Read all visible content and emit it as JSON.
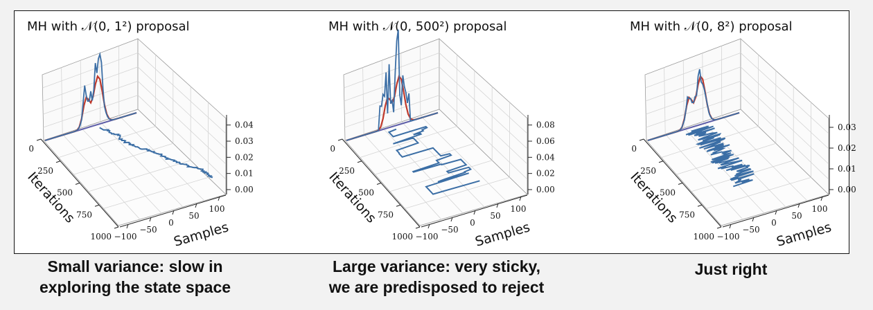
{
  "chart_data": [
    {
      "type": "line-3d",
      "title": "MH with 𝒩(0, 1²) proposal",
      "xlabel": "Samples",
      "ylabel": "Iterations",
      "x_ticks": [
        "−100",
        "−50",
        "0",
        "50",
        "100"
      ],
      "y_ticks": [
        "0",
        "250",
        "500",
        "750",
        "1000"
      ],
      "z_ticks": [
        "0.00",
        "0.01",
        "0.02",
        "0.03",
        "0.04"
      ],
      "zlim": [
        0,
        0.045
      ],
      "series": [
        {
          "role": "target density",
          "color": "#c0392b"
        },
        {
          "role": "sample histogram",
          "color": "#3b6ea5"
        },
        {
          "role": "trace",
          "color": "#3b6ea5"
        }
      ],
      "caption": [
        "Small variance: slow in",
        "exploring the state space"
      ]
    },
    {
      "type": "line-3d",
      "title": "MH with 𝒩(0, 500²) proposal",
      "xlabel": "Samples",
      "ylabel": "Iterations",
      "x_ticks": [
        "−100",
        "−50",
        "0",
        "50",
        "100"
      ],
      "y_ticks": [
        "0",
        "250",
        "500",
        "750",
        "1000"
      ],
      "z_ticks": [
        "0.00",
        "0.02",
        "0.04",
        "0.06",
        "0.08"
      ],
      "zlim": [
        0,
        0.09
      ],
      "series": [
        {
          "role": "target density",
          "color": "#c0392b"
        },
        {
          "role": "sample histogram",
          "color": "#3b6ea5"
        },
        {
          "role": "trace",
          "color": "#3b6ea5"
        }
      ],
      "caption": [
        "Large variance: very sticky,",
        "we are predisposed to reject"
      ]
    },
    {
      "type": "line-3d",
      "title": "MH with 𝒩(0, 8²) proposal",
      "xlabel": "Samples",
      "ylabel": "Iterations",
      "x_ticks": [
        "−100",
        "−50",
        "0",
        "50",
        "100"
      ],
      "y_ticks": [
        "0",
        "250",
        "500",
        "750",
        "1000"
      ],
      "z_ticks": [
        "0.00",
        "0.01",
        "0.02",
        "0.03"
      ],
      "zlim": [
        0,
        0.035
      ],
      "series": [
        {
          "role": "target density",
          "color": "#c0392b"
        },
        {
          "role": "sample histogram",
          "color": "#3b6ea5"
        },
        {
          "role": "trace",
          "color": "#3b6ea5"
        }
      ],
      "caption": [
        "Just right"
      ]
    }
  ]
}
